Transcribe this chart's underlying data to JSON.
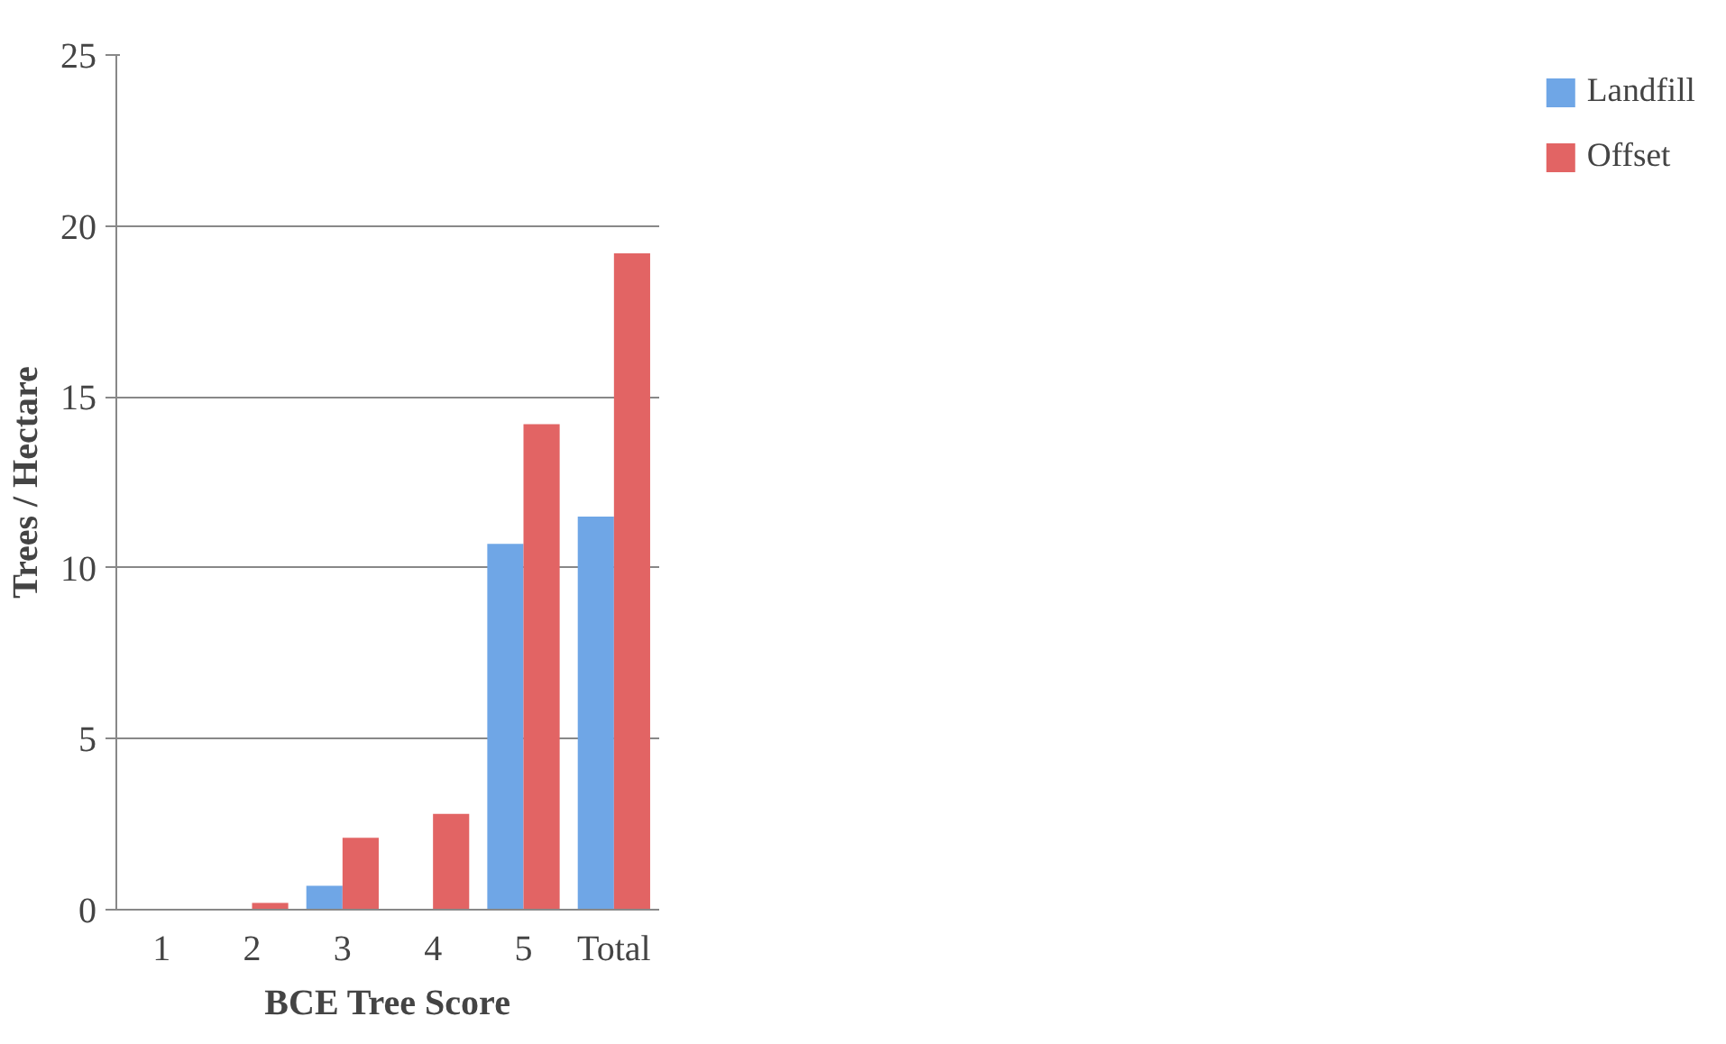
{
  "chart_data": {
    "type": "bar",
    "xlabel": "BCE Tree Score",
    "ylabel": "Trees / Hectare",
    "categories": [
      "1",
      "2",
      "3",
      "4",
      "5",
      "Total"
    ],
    "series": [
      {
        "name": "Landfill",
        "color": "#6fa6e6",
        "values": [
          0,
          0,
          0.7,
          0,
          10.7,
          11.5
        ]
      },
      {
        "name": "Offset",
        "color": "#e26464",
        "values": [
          0,
          0.2,
          2.1,
          2.8,
          14.2,
          19.2
        ]
      }
    ],
    "ylim": [
      0,
      25
    ],
    "yticks": [
      0,
      5,
      10,
      15,
      20,
      25
    ],
    "grid": "y",
    "legend": "right"
  }
}
